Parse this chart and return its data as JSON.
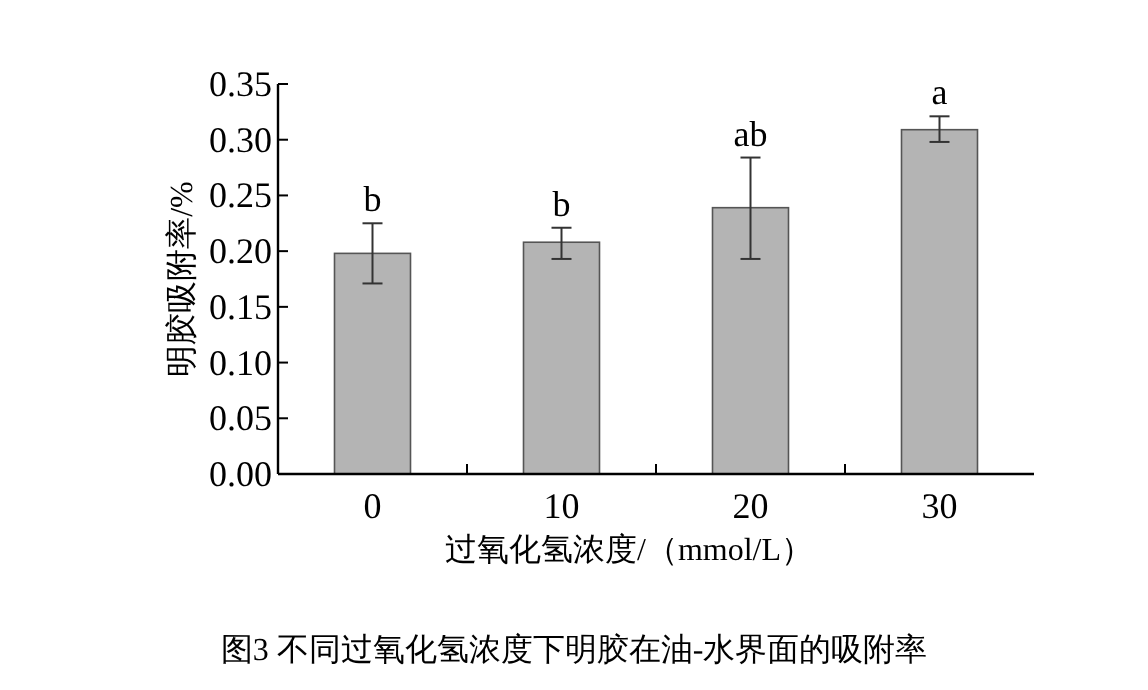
{
  "chart_data": {
    "type": "bar",
    "ylabel": "明胶吸附率/%",
    "xlabel": "过氧化氢浓度/（mmol/L）",
    "categories": [
      "0",
      "10",
      "20",
      "30"
    ],
    "values": [
      0.198,
      0.208,
      0.239,
      0.309
    ],
    "errors": [
      [
        0.171,
        0.225
      ],
      [
        0.193,
        0.221
      ],
      [
        0.193,
        0.284
      ],
      [
        0.298,
        0.321
      ]
    ],
    "color": "#b4b4b4",
    "ylim": [
      0,
      0.35
    ],
    "yticks": [
      {
        "value": 0,
        "label": "0.00"
      },
      {
        "value": 0.05,
        "label": "0.05"
      },
      {
        "value": 0.1,
        "label": "0.10"
      },
      {
        "value": 0.15,
        "label": "0.15"
      },
      {
        "value": 0.2,
        "label": "0.20"
      },
      {
        "value": 0.25,
        "label": "0.25"
      },
      {
        "value": 0.3,
        "label": "0.30"
      },
      {
        "value": 0.35,
        "label": "0.35"
      }
    ],
    "grid": false,
    "annotations": [
      {
        "text": "b",
        "x": "0",
        "y": 0.225
      },
      {
        "text": "b",
        "x": "10",
        "y": 0.221
      },
      {
        "text": "ab",
        "x": "20",
        "y": 0.284
      },
      {
        "text": "a",
        "x": "30",
        "y": 0.321
      },
      "图3 不同过氧化氢浓度下明胶在油-水界面的吸附率"
    ]
  }
}
